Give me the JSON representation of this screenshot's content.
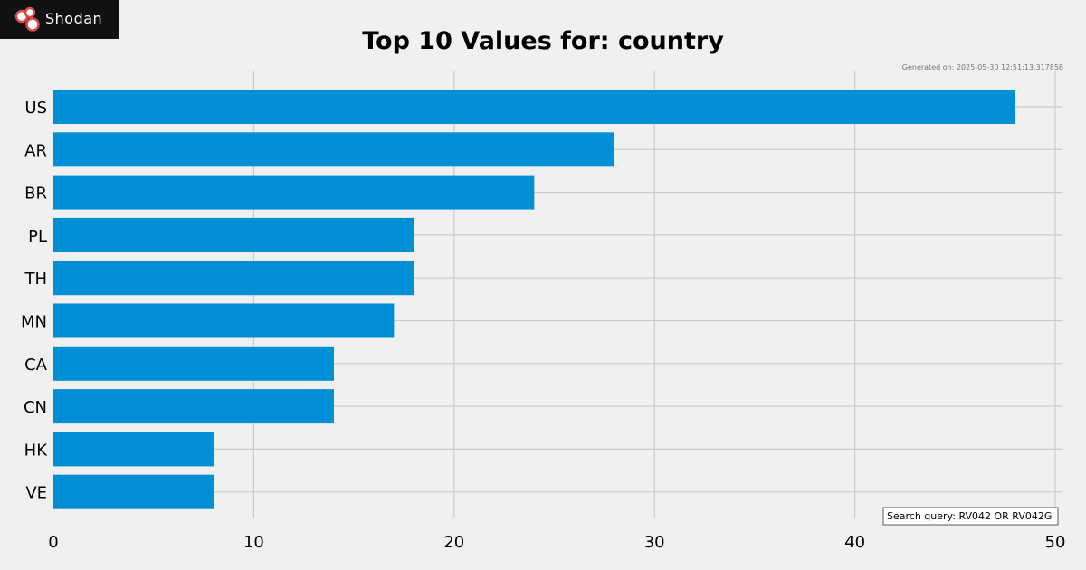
{
  "logo": {
    "wordmark": "Shodan",
    "icon": "shodan-logo-icon"
  },
  "generated_note": "Generated on: 2025-05-30 12:51:13.317858",
  "search_query": "Search query: RV042 OR RV042G",
  "colors": {
    "background": "#f0f0f0",
    "bar": "#008fd5",
    "grid": "#cbcbcb",
    "logo_bg": "#111111"
  },
  "chart_data": {
    "type": "bar",
    "orientation": "horizontal",
    "title": "Top 10 Values for: country",
    "xlabel": "",
    "ylabel": "",
    "categories": [
      "US",
      "AR",
      "BR",
      "PL",
      "TH",
      "MN",
      "CA",
      "CN",
      "HK",
      "VE"
    ],
    "values": [
      48,
      28,
      24,
      18,
      18,
      17,
      14,
      14,
      8,
      8
    ],
    "xlim": [
      0,
      50
    ],
    "xticks": [
      0,
      10,
      20,
      30,
      40,
      50
    ],
    "grid": true
  }
}
